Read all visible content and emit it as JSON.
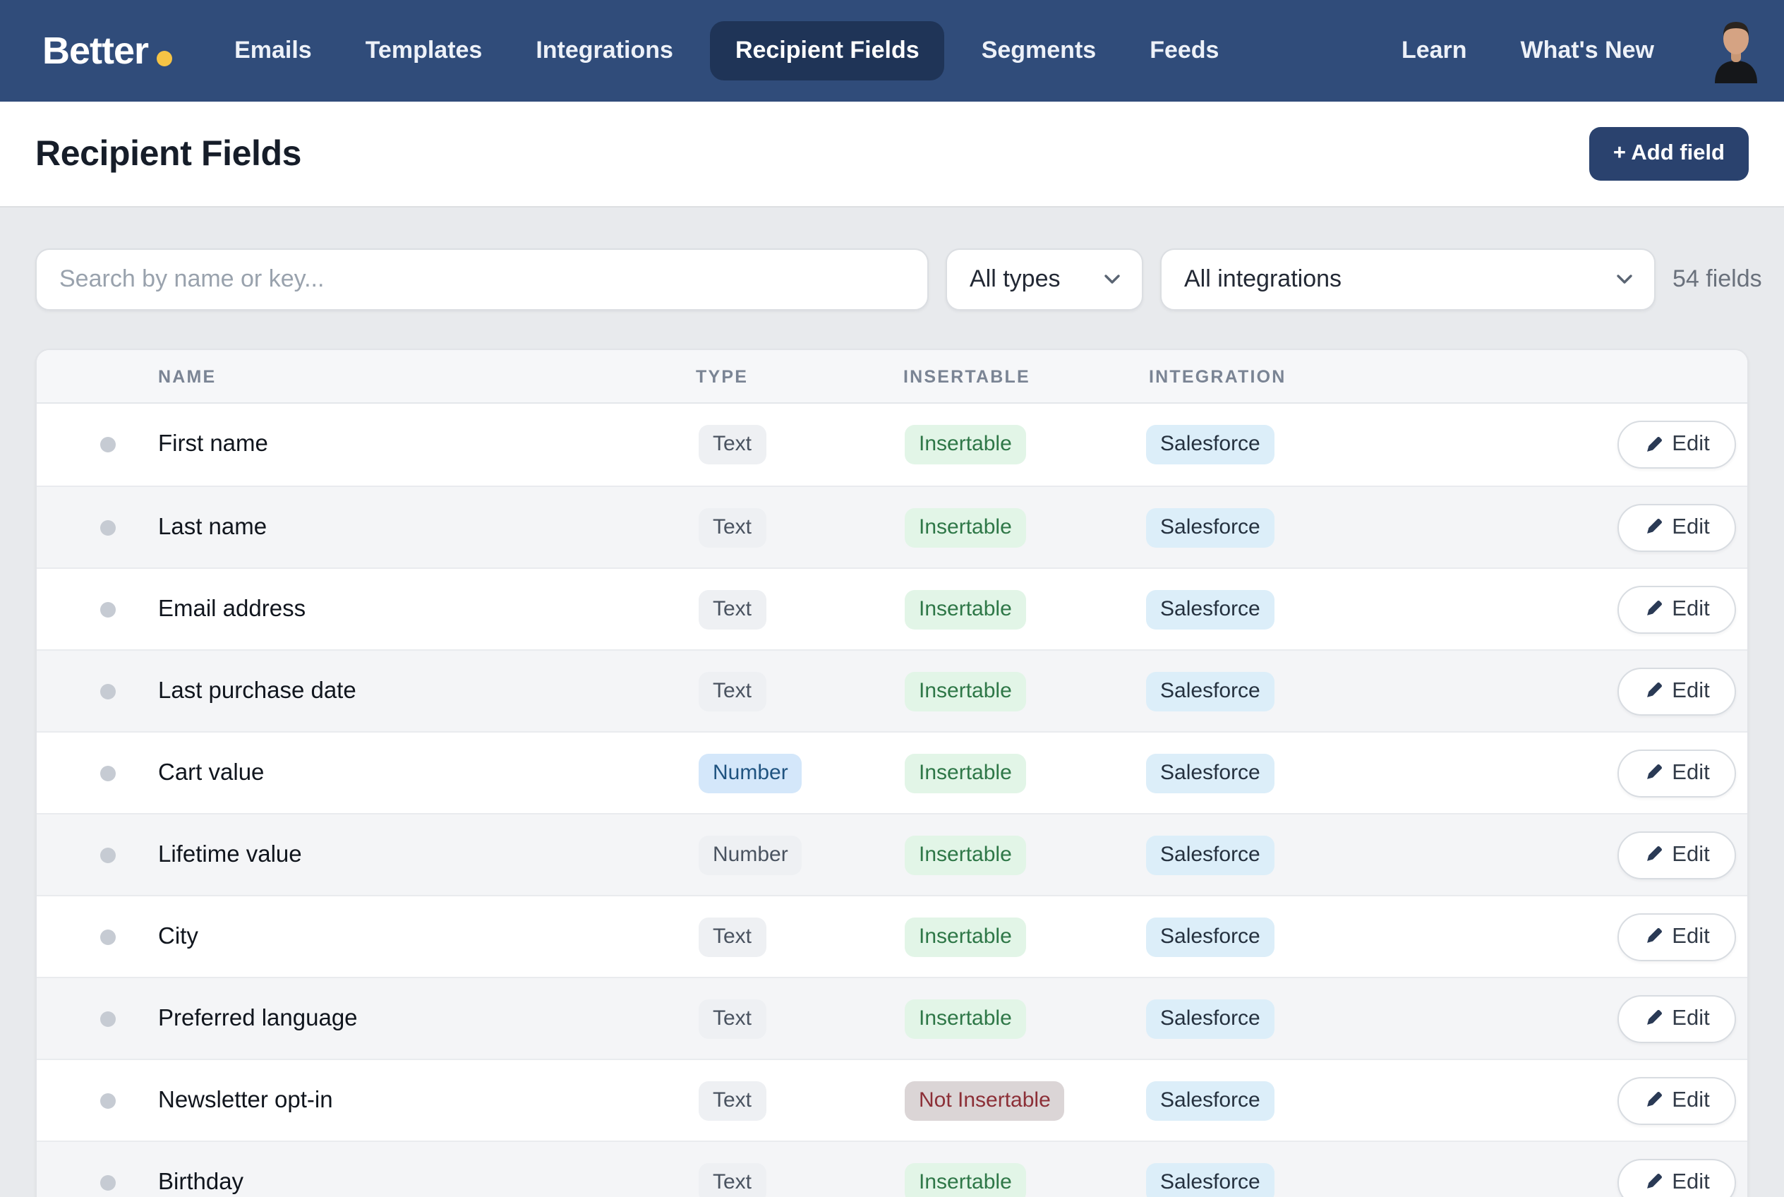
{
  "brand": {
    "name": "Better"
  },
  "nav": {
    "items": [
      {
        "label": "Emails",
        "active": false
      },
      {
        "label": "Templates",
        "active": false
      },
      {
        "label": "Integrations",
        "active": false
      },
      {
        "label": "Recipient Fields",
        "active": true
      },
      {
        "label": "Segments",
        "active": false
      },
      {
        "label": "Feeds",
        "active": false
      }
    ],
    "right_items": [
      {
        "label": "Learn"
      },
      {
        "label": "What's New"
      }
    ]
  },
  "header": {
    "title": "Recipient Fields",
    "add_button_label": "+ Add field"
  },
  "filters": {
    "search_placeholder": "Search by name or key...",
    "type_selected": "All types",
    "integration_selected": "All integrations",
    "count_label": "54 fields"
  },
  "table": {
    "columns": [
      "NAME",
      "TYPE",
      "INSERTABLE",
      "INTEGRATION"
    ],
    "edit_label": "Edit",
    "rows": [
      {
        "name": "First name",
        "type": "Text",
        "type_variant": "gray",
        "insertable": "Insertable",
        "insertable_variant": "green",
        "integration": "Salesforce"
      },
      {
        "name": "Last name",
        "type": "Text",
        "type_variant": "gray",
        "insertable": "Insertable",
        "insertable_variant": "green",
        "integration": "Salesforce"
      },
      {
        "name": "Email address",
        "type": "Text",
        "type_variant": "gray",
        "insertable": "Insertable",
        "insertable_variant": "green",
        "integration": "Salesforce"
      },
      {
        "name": "Last purchase date",
        "type": "Text",
        "type_variant": "gray",
        "insertable": "Insertable",
        "insertable_variant": "green",
        "integration": "Salesforce"
      },
      {
        "name": "Cart value",
        "type": "Number",
        "type_variant": "blue",
        "insertable": "Insertable",
        "insertable_variant": "green",
        "integration": "Salesforce"
      },
      {
        "name": "Lifetime value",
        "type": "Number",
        "type_variant": "gray",
        "insertable": "Insertable",
        "insertable_variant": "green",
        "integration": "Salesforce"
      },
      {
        "name": "City",
        "type": "Text",
        "type_variant": "gray",
        "insertable": "Insertable",
        "insertable_variant": "green",
        "integration": "Salesforce"
      },
      {
        "name": "Preferred language",
        "type": "Text",
        "type_variant": "gray",
        "insertable": "Insertable",
        "insertable_variant": "green",
        "integration": "Salesforce"
      },
      {
        "name": "Newsletter opt-in",
        "type": "Text",
        "type_variant": "gray",
        "insertable": "Not Insertable",
        "insertable_variant": "red",
        "integration": "Salesforce"
      },
      {
        "name": "Birthday",
        "type": "Text",
        "type_variant": "gray",
        "insertable": "Insertable",
        "insertable_variant": "green",
        "integration": "Salesforce"
      }
    ]
  },
  "colors": {
    "nav_bg": "#304C7A",
    "nav_active_bg": "#1F3457",
    "brand_dot": "#F6C445",
    "add_button_bg": "#2A426E",
    "page_bg": "#E8EAED",
    "badge_green_bg": "#E2F5E7",
    "badge_green_text": "#2E7747",
    "badge_red_bg": "#DBD5D6",
    "badge_red_text": "#8C2F37",
    "badge_blue_bg": "#D4E7FA",
    "badge_blue_text": "#1F5380",
    "badge_integration_bg": "#DCEEF9"
  }
}
